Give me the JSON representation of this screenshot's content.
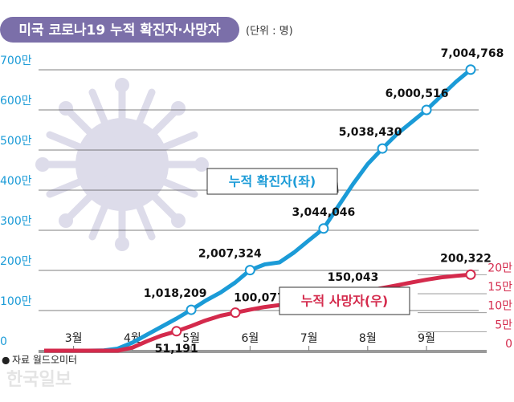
{
  "chart_data": {
    "type": "line",
    "title": "미국 코로나19 누적 확진자·사망자",
    "subtitle": "(단위 : 명)",
    "source": "자료 월드오미터",
    "watermark": "한국일보",
    "categories": [
      null,
      null,
      "3월",
      null,
      null,
      null,
      "4월",
      null,
      null,
      null,
      "5월",
      null,
      null,
      null,
      "6월",
      null,
      null,
      null,
      "7월",
      null,
      null,
      null,
      "8월",
      null,
      null,
      null,
      "9월",
      null,
      null,
      null
    ],
    "ylim": [
      0,
      7000000
    ],
    "yticks": [
      0,
      {
        "value": 1000000,
        "label": "100만"
      },
      {
        "value": 2000000,
        "label": "200만"
      },
      {
        "value": 3000000,
        "label": "300만"
      },
      {
        "value": 4000000,
        "label": "400만"
      },
      {
        "value": 5000000,
        "label": "500만"
      },
      {
        "value": 6000000,
        "label": "600만"
      },
      {
        "value": 7000000,
        "label": "700만"
      }
    ],
    "y2lim": [
      0,
      740000
    ],
    "y2ticks": [
      0,
      {
        "value": 50000,
        "label": "5만"
      },
      {
        "value": 100000,
        "label": "10만"
      },
      {
        "value": 150000,
        "label": "15만"
      },
      {
        "value": 200000,
        "label": "20만"
      }
    ],
    "grid": true,
    "series": [
      {
        "name": "누적 확진자(좌)",
        "color": "#1b9bd7",
        "values": [
          0,
          0,
          0,
          0,
          5000,
          50000,
          200000,
          400000,
          600000,
          800000,
          1018209,
          1250000,
          1450000,
          1700000,
          2007324,
          2150000,
          2200000,
          2450000,
          2750000,
          3044046,
          3600000,
          4150000,
          4650000,
          5038430,
          5400000,
          5700000,
          6000516,
          6350000,
          6700000,
          7004768
        ],
        "value_labels": [
          null,
          null,
          null,
          null,
          null,
          null,
          null,
          null,
          null,
          null,
          "1,018,209",
          null,
          null,
          null,
          "2,007,324",
          null,
          null,
          null,
          null,
          "3,044,046",
          null,
          null,
          null,
          "5,038,430",
          null,
          null,
          "6,000,516",
          null,
          null,
          "7,004,768"
        ]
      },
      {
        "name": "누적 사망자(우)",
        "color": "#d42a4c",
        "axis": "y2",
        "values": [
          0,
          0,
          0,
          0,
          0,
          0,
          8000,
          25000,
          40000,
          51191,
          65000,
          80000,
          92000,
          100077,
          108000,
          115000,
          120000,
          125000,
          130000,
          137000,
          143000,
          150043,
          158000,
          165000,
          172000,
          180000,
          187000,
          193000,
          197000,
          200322
        ],
        "value_labels": [
          null,
          null,
          null,
          null,
          null,
          null,
          null,
          null,
          null,
          "51,191",
          null,
          null,
          null,
          "100,077",
          null,
          null,
          null,
          null,
          null,
          null,
          null,
          "150,043",
          null,
          null,
          null,
          null,
          null,
          null,
          null,
          "200,322"
        ]
      }
    ]
  }
}
